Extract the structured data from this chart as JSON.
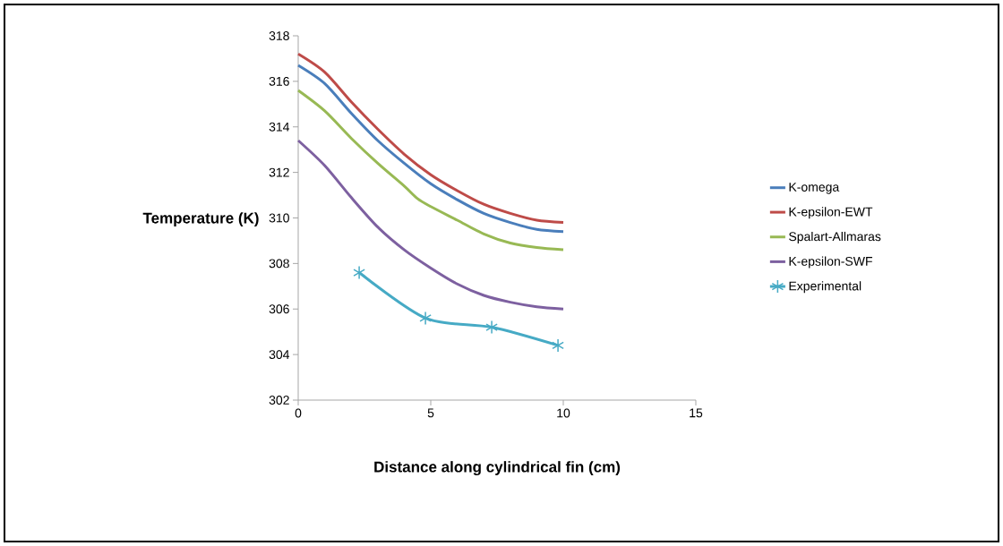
{
  "chart_data": {
    "type": "line",
    "xlabel": "Distance along cylindrical fin (cm)",
    "ylabel": "Temperature (K)",
    "xlim": [
      0,
      15
    ],
    "xticks": [
      0,
      5,
      10,
      15
    ],
    "ylim": [
      302,
      318
    ],
    "yticks": [
      302,
      304,
      306,
      308,
      310,
      312,
      314,
      316,
      318
    ],
    "grid": false,
    "legend": "right",
    "marker": "none",
    "line_style": "solid",
    "series": [
      {
        "name": "K-omega",
        "color": "#4a7ebb",
        "x": [
          0,
          1,
          2,
          3,
          4,
          5,
          6,
          7,
          8,
          9,
          10
        ],
        "values": [
          316.7,
          315.9,
          314.6,
          313.4,
          312.4,
          311.5,
          310.8,
          310.2,
          309.8,
          309.5,
          309.4
        ]
      },
      {
        "name": "K-epsilon-EWT",
        "color": "#be4b48",
        "x": [
          0,
          1,
          2,
          3,
          4,
          5,
          6,
          7,
          8,
          9,
          10
        ],
        "values": [
          317.2,
          316.4,
          315.1,
          313.9,
          312.8,
          311.9,
          311.2,
          310.6,
          310.2,
          309.9,
          309.8
        ]
      },
      {
        "name": "Spalart-Allmaras",
        "color": "#98b954",
        "x": [
          0,
          1,
          2,
          3,
          4,
          4.5,
          5,
          6,
          7,
          8,
          9,
          10
        ],
        "values": [
          315.6,
          314.7,
          313.5,
          312.4,
          311.4,
          310.85,
          310.5,
          309.9,
          309.3,
          308.9,
          308.7,
          308.6
        ]
      },
      {
        "name": "K-epsilon-SWF",
        "color": "#7d60a0",
        "x": [
          0,
          1,
          2,
          3,
          4,
          5,
          6,
          7,
          8,
          9,
          10
        ],
        "values": [
          313.4,
          312.3,
          310.9,
          309.6,
          308.6,
          307.8,
          307.1,
          306.6,
          306.3,
          306.1,
          306.0
        ]
      },
      {
        "name": "Experimental",
        "color": "#46aac5",
        "marker": "cross",
        "x": [
          2.3,
          4.8,
          7.3,
          9.8
        ],
        "values": [
          307.6,
          305.6,
          305.2,
          304.4
        ]
      }
    ]
  }
}
